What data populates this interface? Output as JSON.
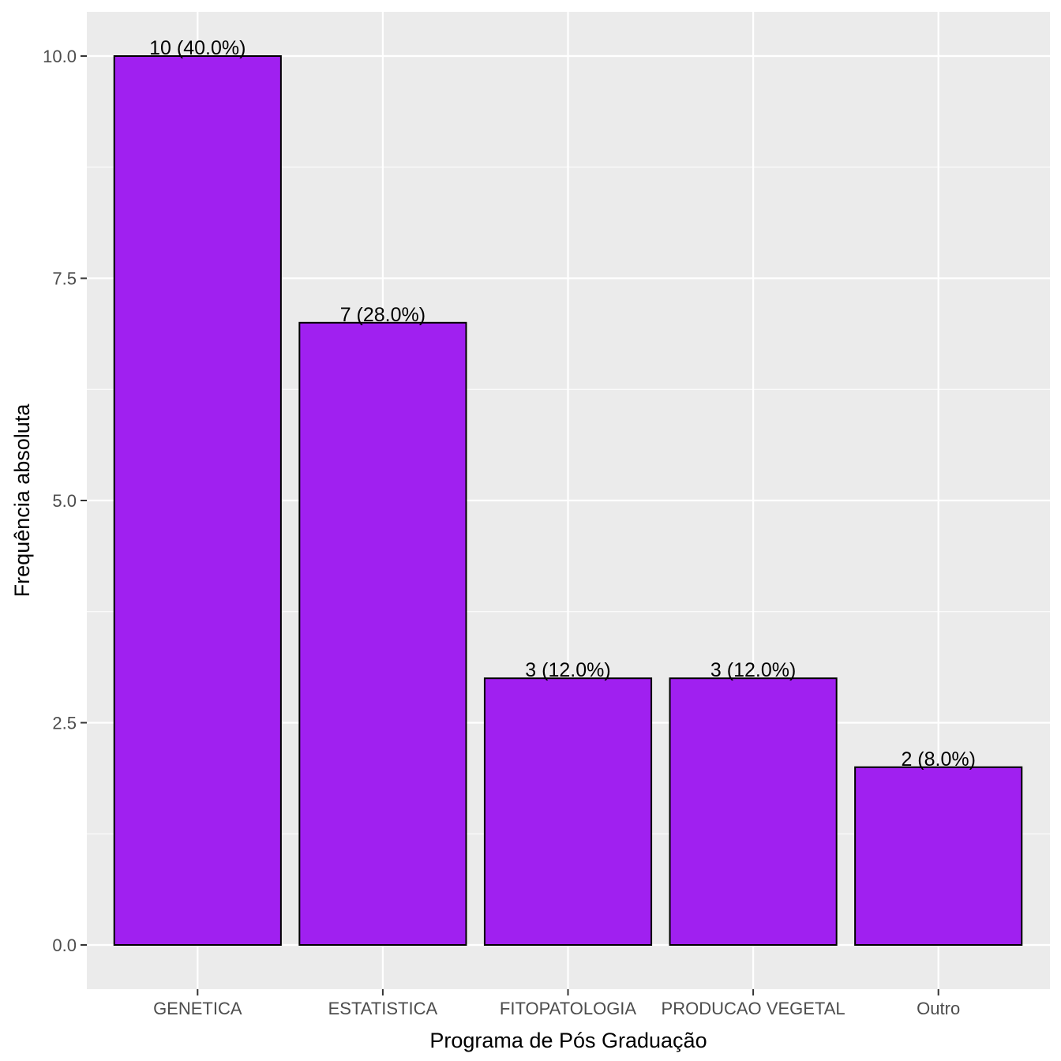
{
  "chart_data": {
    "type": "bar",
    "categories": [
      "GENETICA",
      "ESTATISTICA",
      "FITOPATOLOGIA",
      "PRODUCAO VEGETAL",
      "Outro"
    ],
    "values": [
      10,
      7,
      3,
      3,
      2
    ],
    "data_labels": [
      "10 (40.0%)",
      "7 (28.0%)",
      "3 (12.0%)",
      "3 (12.0%)",
      "2 (8.0%)"
    ],
    "xlabel": "Programa de Pós Graduação",
    "ylabel": "Frequência absoluta",
    "ylim": [
      -0.5,
      10.5
    ],
    "yticks": [
      0,
      2.5,
      5,
      7.5,
      10
    ],
    "ytick_labels": [
      "0.0",
      "2.5",
      "5.0",
      "7.5",
      "10.0"
    ],
    "grid": true,
    "colors": {
      "bar_fill": "#A020F0",
      "bar_stroke": "#000000",
      "panel_bg": "#EBEBEB",
      "grid": "#FFFFFF",
      "tick": "#333333"
    }
  }
}
